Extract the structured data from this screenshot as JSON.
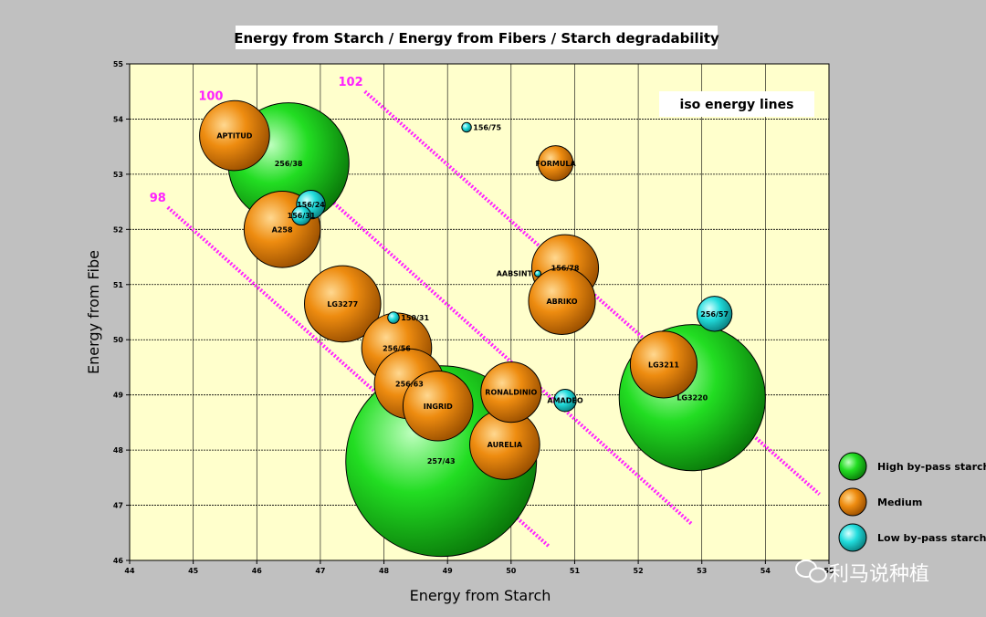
{
  "chart_data": {
    "type": "bubble",
    "title": "Energy from Starch / Energy from Fibers / Starch degradability",
    "xlabel": "Energy from Starch",
    "ylabel": "Energy from Fibe",
    "xlim": [
      44,
      55
    ],
    "ylim": [
      46,
      55
    ],
    "x_ticks": [
      "44",
      "45",
      "46",
      "47",
      "48",
      "49",
      "50",
      "51",
      "52",
      "53",
      "54",
      "55"
    ],
    "y_ticks": [
      "46",
      "47",
      "48",
      "49",
      "50",
      "51",
      "52",
      "53",
      "54",
      "55"
    ],
    "grid": true,
    "annotation_box": "iso energy lines",
    "categories": [
      {
        "name": "High by-pass starch",
        "color": "#22dd22"
      },
      {
        "name": "Medium",
        "color": "#ee8c10"
      },
      {
        "name": "Low by-pass starch",
        "color": "#22dddd"
      }
    ],
    "legend_position": "right",
    "points": [
      {
        "label": "256/38",
        "x": 46.5,
        "y": 53.2,
        "r": 1.9,
        "category": 0
      },
      {
        "label": "257/43",
        "x": 48.9,
        "y": 47.8,
        "r": 3.0,
        "category": 0
      },
      {
        "label": "LG3220",
        "x": 52.85,
        "y": 48.95,
        "r": 2.3,
        "category": 0
      },
      {
        "label": "APTITUD",
        "x": 45.65,
        "y": 53.7,
        "r": 1.1,
        "category": 1
      },
      {
        "label": "A258",
        "x": 46.4,
        "y": 52.0,
        "r": 1.2,
        "category": 1
      },
      {
        "label": "LG3277",
        "x": 47.35,
        "y": 50.65,
        "r": 1.2,
        "category": 1
      },
      {
        "label": "256/56",
        "x": 48.2,
        "y": 49.85,
        "r": 1.1,
        "category": 1
      },
      {
        "label": "256/63",
        "x": 48.4,
        "y": 49.2,
        "r": 1.1,
        "category": 1
      },
      {
        "label": "INGRID",
        "x": 48.85,
        "y": 48.8,
        "r": 1.1,
        "category": 1
      },
      {
        "label": "RONALDINIO",
        "x": 50.0,
        "y": 49.05,
        "r": 0.95,
        "category": 1
      },
      {
        "label": "AURELIA",
        "x": 49.9,
        "y": 48.1,
        "r": 1.1,
        "category": 1
      },
      {
        "label": "FORMULA",
        "x": 50.7,
        "y": 53.2,
        "r": 0.55,
        "category": 1
      },
      {
        "label": "156/78",
        "x": 50.85,
        "y": 51.3,
        "r": 1.05,
        "category": 1
      },
      {
        "label": "ABRIKO",
        "x": 50.8,
        "y": 50.7,
        "r": 1.05,
        "category": 1
      },
      {
        "label": "LG3211",
        "x": 52.4,
        "y": 49.55,
        "r": 1.05,
        "category": 1
      },
      {
        "label": "156/24",
        "x": 46.85,
        "y": 52.45,
        "r": 0.45,
        "category": 2
      },
      {
        "label": "156/31",
        "x": 46.7,
        "y": 52.25,
        "r": 0.3,
        "category": 2
      },
      {
        "label": "156/75",
        "x": 49.3,
        "y": 53.85,
        "r": 0.15,
        "category": 2
      },
      {
        "label": "AABSINT",
        "x": 50.42,
        "y": 51.2,
        "r": 0.1,
        "category": 2
      },
      {
        "label": "150/31",
        "x": 48.15,
        "y": 50.4,
        "r": 0.18,
        "category": 2
      },
      {
        "label": "AMADEO",
        "x": 50.85,
        "y": 48.9,
        "r": 0.35,
        "category": 2
      },
      {
        "label": "256/57",
        "x": 53.2,
        "y": 50.47,
        "r": 0.55,
        "category": 2
      }
    ],
    "iso_energy_lines": [
      {
        "label": "98",
        "x": [
          44.6,
          50.6
        ],
        "y": [
          52.4,
          46.25
        ]
      },
      {
        "label": "100",
        "x": [
          45.5,
          52.85
        ],
        "y": [
          54.25,
          46.65
        ]
      },
      {
        "label": "102",
        "x": [
          47.7,
          54.85
        ],
        "y": [
          54.5,
          47.2
        ]
      }
    ]
  },
  "watermark": "利马说种植"
}
